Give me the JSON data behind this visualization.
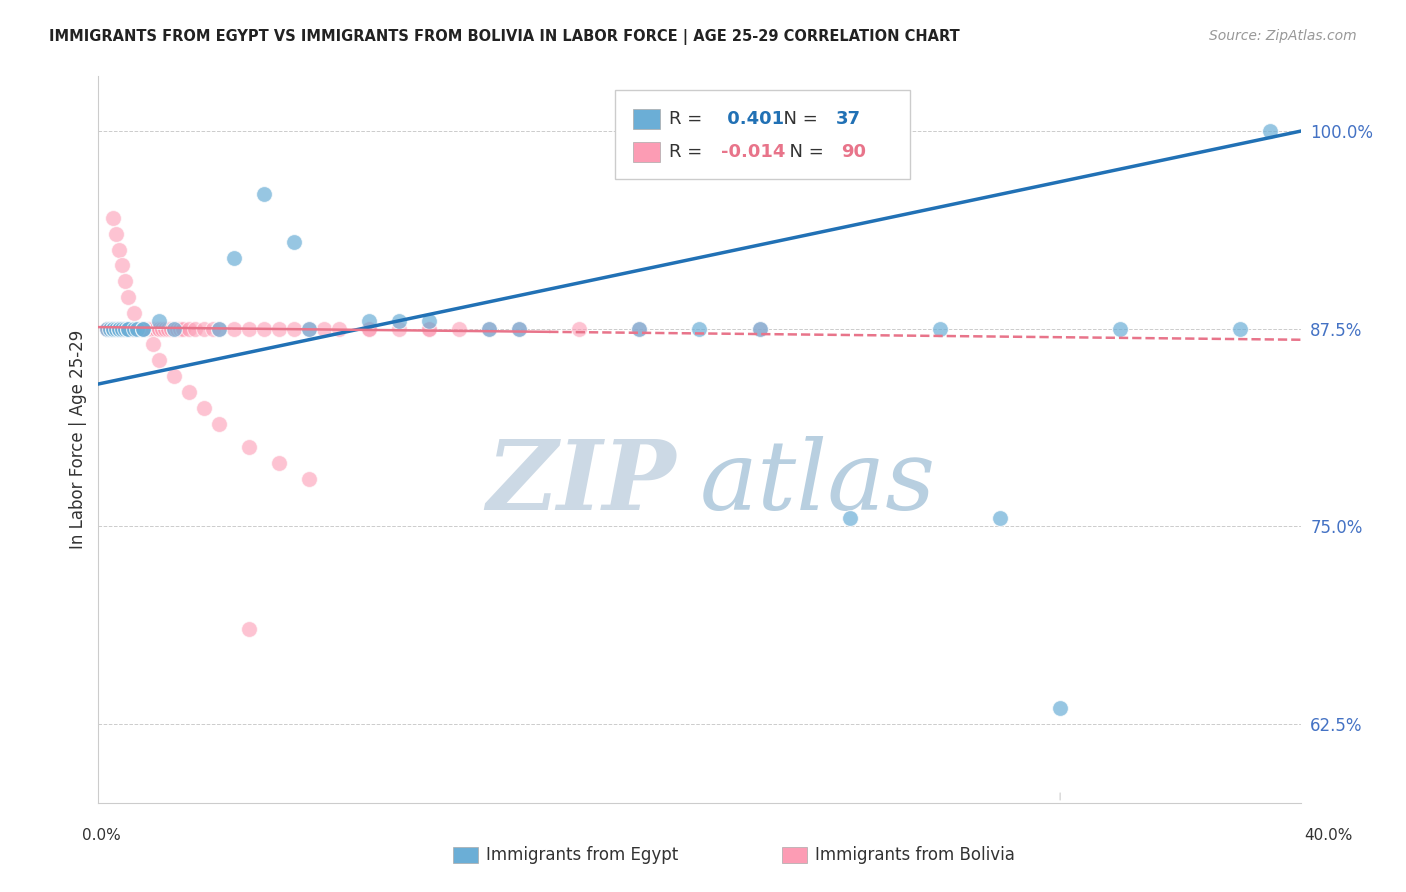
{
  "title": "IMMIGRANTS FROM EGYPT VS IMMIGRANTS FROM BOLIVIA IN LABOR FORCE | AGE 25-29 CORRELATION CHART",
  "source": "Source: ZipAtlas.com",
  "ylabel": "In Labor Force | Age 25-29",
  "xmin": 0.0,
  "xmax": 0.4,
  "ymin": 0.575,
  "ymax": 1.035,
  "egypt_R": 0.401,
  "egypt_N": 37,
  "bolivia_R": -0.014,
  "bolivia_N": 90,
  "egypt_color": "#6baed6",
  "bolivia_color": "#fc9cb4",
  "egypt_line_color": "#2171b5",
  "bolivia_line_color": "#e8748a",
  "watermark_zip": "ZIP",
  "watermark_atlas": "atlas",
  "watermark_color_zip": "#c8d8e8",
  "watermark_color_atlas": "#b8cfe0",
  "yticks_pct": [
    62.5,
    75.0,
    87.5,
    100.0
  ],
  "grid_color": "#cccccc",
  "egypt_x": [
    0.003,
    0.004,
    0.005,
    0.005,
    0.006,
    0.007,
    0.007,
    0.008,
    0.009,
    0.01,
    0.01,
    0.012,
    0.013,
    0.015,
    0.015,
    0.02,
    0.025,
    0.04,
    0.055,
    0.065,
    0.09,
    0.1,
    0.11,
    0.13,
    0.14,
    0.18,
    0.2,
    0.22,
    0.25,
    0.28,
    0.3,
    0.32,
    0.34,
    0.38,
    0.39,
    0.045,
    0.07
  ],
  "egypt_y": [
    0.875,
    0.875,
    0.875,
    0.875,
    0.875,
    0.875,
    0.875,
    0.875,
    0.875,
    0.875,
    0.875,
    0.875,
    0.875,
    0.875,
    0.875,
    0.88,
    0.875,
    0.875,
    0.96,
    0.93,
    0.88,
    0.88,
    0.88,
    0.875,
    0.875,
    0.875,
    0.875,
    0.875,
    0.755,
    0.875,
    0.755,
    0.635,
    0.875,
    0.875,
    1.0,
    0.92,
    0.875
  ],
  "bolivia_x": [
    0.003,
    0.003,
    0.004,
    0.004,
    0.005,
    0.005,
    0.005,
    0.006,
    0.006,
    0.006,
    0.007,
    0.007,
    0.007,
    0.008,
    0.008,
    0.008,
    0.009,
    0.009,
    0.009,
    0.009,
    0.01,
    0.01,
    0.01,
    0.01,
    0.011,
    0.011,
    0.012,
    0.012,
    0.013,
    0.013,
    0.014,
    0.014,
    0.015,
    0.015,
    0.016,
    0.017,
    0.018,
    0.019,
    0.02,
    0.02,
    0.021,
    0.022,
    0.023,
    0.024,
    0.025,
    0.026,
    0.027,
    0.028,
    0.03,
    0.032,
    0.035,
    0.038,
    0.04,
    0.045,
    0.05,
    0.055,
    0.06,
    0.065,
    0.07,
    0.075,
    0.08,
    0.09,
    0.1,
    0.11,
    0.12,
    0.005,
    0.006,
    0.007,
    0.008,
    0.009,
    0.01,
    0.012,
    0.015,
    0.018,
    0.02,
    0.025,
    0.03,
    0.035,
    0.04,
    0.05,
    0.06,
    0.07,
    0.14,
    0.16,
    0.18,
    0.22,
    0.05,
    0.09,
    0.11,
    0.13
  ],
  "bolivia_y": [
    0.875,
    0.875,
    0.875,
    0.875,
    0.875,
    0.875,
    0.875,
    0.875,
    0.875,
    0.875,
    0.875,
    0.875,
    0.875,
    0.875,
    0.875,
    0.875,
    0.875,
    0.875,
    0.875,
    0.875,
    0.875,
    0.875,
    0.875,
    0.875,
    0.875,
    0.875,
    0.875,
    0.875,
    0.875,
    0.875,
    0.875,
    0.875,
    0.875,
    0.875,
    0.875,
    0.875,
    0.875,
    0.875,
    0.875,
    0.875,
    0.875,
    0.875,
    0.875,
    0.875,
    0.875,
    0.875,
    0.875,
    0.875,
    0.875,
    0.875,
    0.875,
    0.875,
    0.875,
    0.875,
    0.875,
    0.875,
    0.875,
    0.875,
    0.875,
    0.875,
    0.875,
    0.875,
    0.875,
    0.875,
    0.875,
    0.945,
    0.935,
    0.925,
    0.915,
    0.905,
    0.895,
    0.885,
    0.875,
    0.865,
    0.855,
    0.845,
    0.835,
    0.825,
    0.815,
    0.8,
    0.79,
    0.78,
    0.875,
    0.875,
    0.875,
    0.875,
    0.685,
    0.875,
    0.875,
    0.875
  ]
}
